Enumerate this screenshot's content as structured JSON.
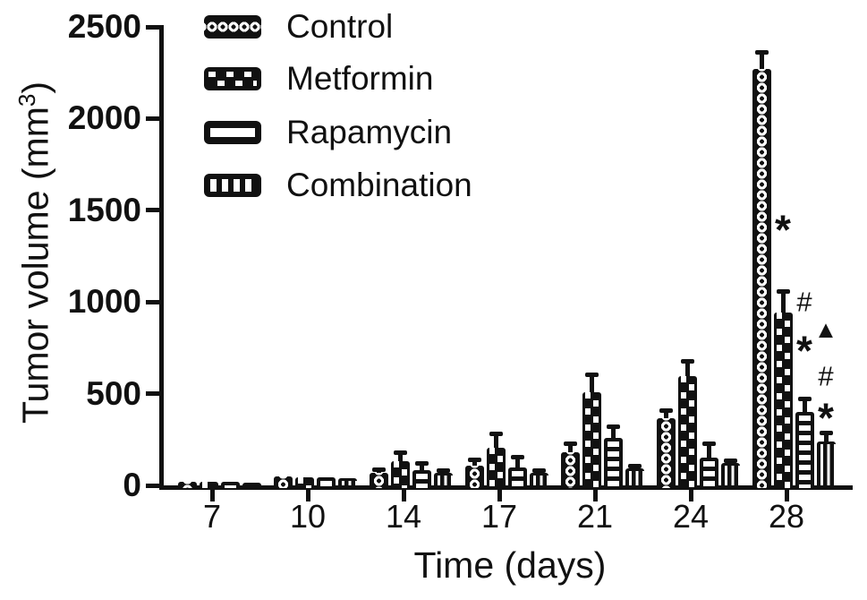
{
  "figure": {
    "background": "#ffffff",
    "ink_color": "#111111",
    "x_axis_title": "Time (days)",
    "y_axis_title": {
      "prefix": "Tumor volume (mm",
      "sup": "3",
      "suffix": ")"
    }
  },
  "chart_data": {
    "type": "bar",
    "title": "",
    "xlabel": "Time (days)",
    "ylabel": "Tumor volume (mm³)",
    "categories": [
      7,
      10,
      14,
      17,
      21,
      24,
      28
    ],
    "ylim": [
      0,
      2500
    ],
    "yticks": [
      0,
      500,
      1000,
      1500,
      2000,
      2500
    ],
    "grid": false,
    "legend_position": "inside-top-left",
    "series": [
      {
        "name": "Control",
        "pattern": "control",
        "values": [
          20,
          48,
          70,
          105,
          180,
          365,
          2270
        ],
        "errors": [
          0,
          0,
          18,
          35,
          48,
          45,
          95
        ]
      },
      {
        "name": "Metformin",
        "pattern": "metformin",
        "values": [
          20,
          46,
          130,
          205,
          510,
          595,
          940
        ],
        "errors": [
          0,
          0,
          50,
          80,
          95,
          85,
          120
        ]
      },
      {
        "name": "Rapamycin",
        "pattern": "rapamycin",
        "values": [
          18,
          42,
          85,
          100,
          260,
          150,
          400
        ],
        "errors": [
          0,
          0,
          35,
          55,
          60,
          80,
          75
        ]
      },
      {
        "name": "Combination",
        "pattern": "combination",
        "values": [
          16,
          40,
          70,
          68,
          95,
          120,
          240
        ],
        "errors": [
          0,
          0,
          12,
          15,
          12,
          18,
          50
        ]
      }
    ],
    "annotations": [
      {
        "day": 28,
        "series": "Metformin",
        "symbol": "*",
        "value_y": 1430
      },
      {
        "day": 28,
        "series": "Rapamycin",
        "symbol": "#",
        "value_y": 1000
      },
      {
        "day": 28,
        "series": "Rapamycin",
        "symbol": "*",
        "value_y": 770
      },
      {
        "day": 28,
        "series": "Combination",
        "symbol": "▲",
        "value_y": 845
      },
      {
        "day": 28,
        "series": "Combination",
        "symbol": "#",
        "value_y": 595
      },
      {
        "day": 28,
        "series": "Combination",
        "symbol": "*",
        "value_y": 405
      }
    ]
  }
}
